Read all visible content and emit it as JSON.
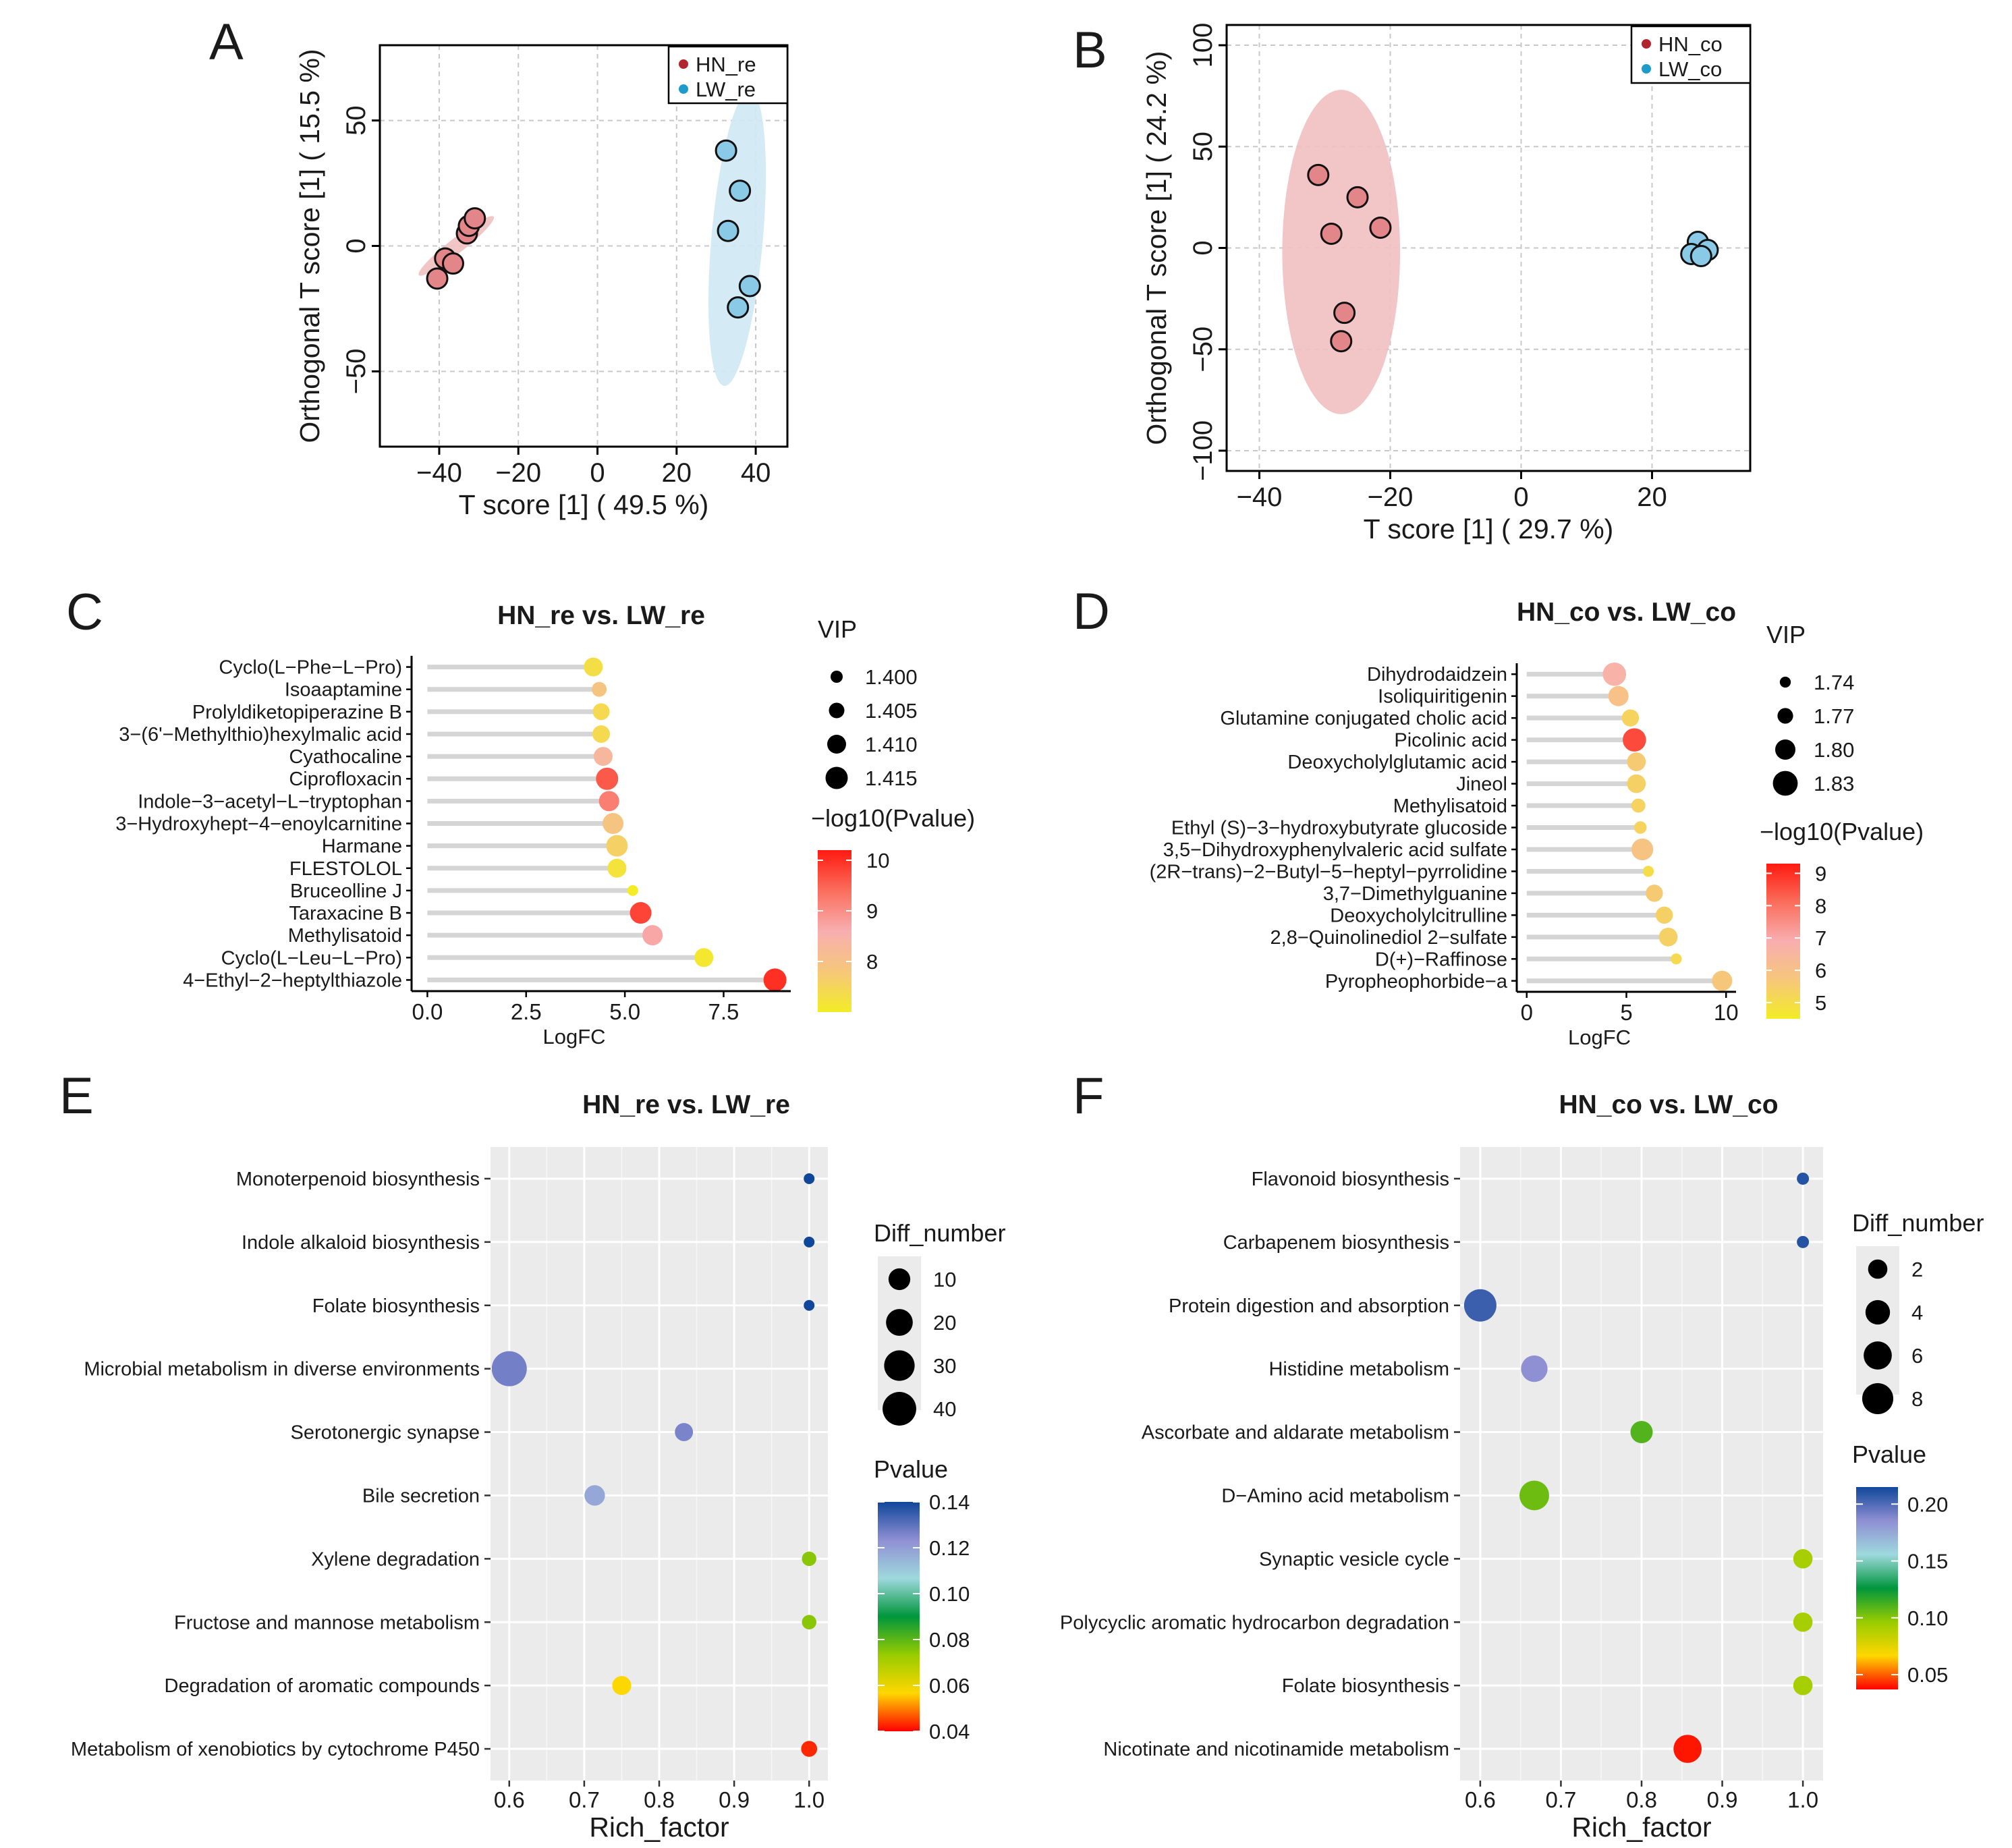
{
  "colors": {
    "hn": "#b1262e",
    "lw": "#1e9bc8",
    "hn_point": "#e38689",
    "lw_point": "#8bcae6",
    "hn_ellipse": "#f1c0c1",
    "lw_ellipse": "#cfe8f3",
    "grey_panel": "#ebebeb"
  },
  "chart_data": [
    {
      "panel": "A",
      "type": "scatter",
      "xlabel": "T score [1] ( 49.5 %)",
      "ylabel": "Orthogonal T score [1] ( 15.5 %)",
      "xlim": [
        -55,
        48
      ],
      "ylim": [
        -80,
        80
      ],
      "xticks": [
        -40,
        -20,
        0,
        20,
        40
      ],
      "xtick_labels": [
        "−40",
        "−20",
        "0",
        "20",
        "40"
      ],
      "yticks": [
        -50,
        0,
        50
      ],
      "ytick_labels": [
        "−50",
        "0",
        "50"
      ],
      "legend": [
        {
          "label": "HN_re",
          "group": "hn"
        },
        {
          "label": "LW_re",
          "group": "lw"
        }
      ],
      "series": [
        {
          "name": "HN_re",
          "group": "hn",
          "points": [
            [
              -40.5,
              -13
            ],
            [
              -38.5,
              -5
            ],
            [
              -36.5,
              -7
            ],
            [
              -33,
              5
            ],
            [
              -32.5,
              8
            ],
            [
              -31,
              11
            ]
          ]
        },
        {
          "name": "LW_re",
          "group": "lw",
          "points": [
            [
              32.5,
              38
            ],
            [
              36,
              22
            ],
            [
              33,
              6
            ],
            [
              38.5,
              -16
            ],
            [
              35.5,
              -24.5
            ]
          ]
        }
      ],
      "ellipses": [
        {
          "group": "hn",
          "cx": -35.7,
          "cy": 0,
          "rx": 12,
          "ry": 3,
          "angle": 38
        },
        {
          "group": "lw",
          "cx": 35.3,
          "cy": 3,
          "rx": 6.5,
          "ry": 59,
          "angle": -5
        }
      ]
    },
    {
      "panel": "B",
      "type": "scatter",
      "xlabel": "T score [1] ( 29.7 %)",
      "ylabel": "Orthogonal T score [1] ( 24.2 %)",
      "xlim": [
        -45,
        35
      ],
      "ylim": [
        -110,
        110
      ],
      "xticks": [
        -40,
        -20,
        0,
        20
      ],
      "xtick_labels": [
        "−40",
        "−20",
        "0",
        "20"
      ],
      "yticks": [
        -100,
        -50,
        0,
        50,
        100
      ],
      "ytick_labels": [
        "−100",
        "−50",
        "0",
        "50",
        "100"
      ],
      "legend": [
        {
          "label": "HN_co",
          "group": "hn"
        },
        {
          "label": "LW_co",
          "group": "lw"
        }
      ],
      "series": [
        {
          "name": "HN_co",
          "group": "hn",
          "points": [
            [
              -31,
              36
            ],
            [
              -29,
              7
            ],
            [
              -25,
              25
            ],
            [
              -21.5,
              10
            ],
            [
              -27,
              -32
            ],
            [
              -27.5,
              -46
            ]
          ]
        },
        {
          "name": "LW_co",
          "group": "lw",
          "points": [
            [
              27,
              3
            ],
            [
              28.5,
              -1
            ],
            [
              26,
              -3
            ],
            [
              27.5,
              -4
            ]
          ]
        }
      ],
      "ellipses": [
        {
          "group": "hn",
          "cx": -27.5,
          "cy": -2,
          "rx": 9,
          "ry": 80,
          "angle": 0
        }
      ]
    },
    {
      "panel": "C",
      "type": "lollipop",
      "title": "HN_re vs. LW_re",
      "xlabel": "LogFC",
      "xlim": [
        -0.4,
        9.2
      ],
      "xticks": [
        0.0,
        2.5,
        5.0,
        7.5
      ],
      "xtick_labels": [
        "0.0",
        "2.5",
        "5.0",
        "7.5"
      ],
      "categories": [
        "Cyclo(L−Phe−L−Pro)",
        "Isoaaptamine",
        "Prolyldiketopiperazine B",
        "3−(6'−Methylthio)hexylmalic acid",
        "Cyathocaline",
        "Ciprofloxacin",
        "Indole−3−acetyl−L−tryptophan",
        "3−Hydroxyhept−4−enoylcarnitine",
        "Harmane",
        "FLESTOLOL",
        "Bruceolline J",
        "Taraxacine B",
        "Methylisatoid",
        "Cyclo(L−Leu−L−Pro)",
        "4−Ethyl−2−heptylthiazole"
      ],
      "values": [
        4.2,
        4.35,
        4.4,
        4.4,
        4.45,
        4.55,
        4.6,
        4.7,
        4.8,
        4.8,
        5.2,
        5.4,
        5.7,
        7.0,
        8.8
      ],
      "vip": [
        1.41,
        1.404,
        1.407,
        1.408,
        1.41,
        1.415,
        1.412,
        1.413,
        1.414,
        1.41,
        1.398,
        1.414,
        1.412,
        1.41,
        1.416
      ],
      "neglog10p": [
        7.3,
        7.9,
        7.4,
        7.4,
        8.3,
        9.6,
        9.2,
        7.9,
        7.6,
        7.2,
        7.0,
        9.8,
        8.7,
        7.1,
        10.0
      ],
      "size_legend": {
        "title": "VIP",
        "labels": [
          "1.400",
          "1.405",
          "1.410",
          "1.415"
        ],
        "values": [
          1.4,
          1.405,
          1.41,
          1.415
        ],
        "range": [
          1.396,
          1.416
        ]
      },
      "color_legend": {
        "title": "−log10(Pvalue)",
        "labels": [
          "10",
          "9",
          "8"
        ],
        "values": [
          10,
          9,
          8
        ],
        "range": [
          7.0,
          10.2
        ],
        "stops": [
          "#f3ec26",
          "#f6c77a",
          "#f8aeb0",
          "#fa6e5c",
          "#ff1a10"
        ]
      }
    },
    {
      "panel": "D",
      "type": "lollipop",
      "title": "HN_co vs. LW_co",
      "xlabel": "LogFC",
      "xlim": [
        -0.5,
        10.5
      ],
      "xticks": [
        0,
        5,
        10
      ],
      "xtick_labels": [
        "0",
        "5",
        "10"
      ],
      "categories": [
        "Dihydrodaidzein",
        "Isoliquiritigenin",
        "Glutamine conjugated cholic acid",
        "Picolinic acid",
        "Deoxycholylglutamic acid",
        "Jineol",
        "Methylisatoid",
        "Ethyl (S)−3−hydroxybutyrate glucoside",
        "3,5−Dihydroxyphenylvaleric acid sulfate",
        "(2R−trans)−2−Butyl−5−heptyl−pyrrolidine",
        "3,7−Dimethylguanine",
        "Deoxycholylcitrulline",
        "2,8−Quinolinediol 2−sulfate",
        "D(+)−Raffinose",
        "Pyropheophorbide−a"
      ],
      "values": [
        4.4,
        4.6,
        5.2,
        5.4,
        5.5,
        5.5,
        5.6,
        5.7,
        5.8,
        6.1,
        6.4,
        6.9,
        7.1,
        7.5,
        9.8
      ],
      "vip": [
        1.82,
        1.8,
        1.78,
        1.82,
        1.79,
        1.79,
        1.76,
        1.75,
        1.81,
        1.74,
        1.78,
        1.78,
        1.79,
        1.74,
        1.8
      ],
      "neglog10p": [
        6.7,
        6.0,
        5.3,
        8.6,
        5.6,
        5.4,
        5.3,
        5.3,
        5.9,
        5.0,
        5.6,
        5.4,
        5.4,
        5.1,
        5.7
      ],
      "size_legend": {
        "title": "VIP",
        "labels": [
          "1.74",
          "1.77",
          "1.80",
          "1.83"
        ],
        "values": [
          1.74,
          1.77,
          1.8,
          1.83
        ],
        "range": [
          1.73,
          1.835
        ]
      },
      "color_legend": {
        "title": "−log10(Pvalue)",
        "labels": [
          "9",
          "8",
          "7",
          "6",
          "5"
        ],
        "values": [
          9,
          8,
          7,
          6,
          5
        ],
        "range": [
          4.5,
          9.3
        ],
        "stops": [
          "#f3ec26",
          "#f6c77a",
          "#f8aeb0",
          "#fa6e5c",
          "#ff1a10"
        ]
      }
    },
    {
      "panel": "E",
      "type": "bubble",
      "title": "HN_re vs. LW_re",
      "xlabel": "Rich_factor",
      "xlim": [
        0.575,
        1.025
      ],
      "xticks": [
        0.6,
        0.7,
        0.8,
        0.9,
        1.0
      ],
      "xtick_labels": [
        "0.6",
        "0.7",
        "0.8",
        "0.9",
        "1.0"
      ],
      "categories": [
        "Monoterpenoid biosynthesis",
        "Indole alkaloid biosynthesis",
        "Folate biosynthesis",
        "Microbial metabolism in diverse environments",
        "Serotonergic synapse",
        "Bile secretion",
        "Xylene degradation",
        "Fructose and mannose metabolism",
        "Degradation of aromatic compounds",
        "Metabolism of xenobiotics by cytochrome P450"
      ],
      "rich_factor": [
        1.0,
        1.0,
        1.0,
        0.6,
        0.833,
        0.714,
        1.0,
        1.0,
        0.75,
        1.0
      ],
      "diff_number": [
        1,
        1,
        1,
        45,
        5,
        8,
        2,
        2,
        6,
        3
      ],
      "pvalue": [
        0.142,
        0.142,
        0.142,
        0.127,
        0.126,
        0.118,
        0.075,
        0.075,
        0.057,
        0.043
      ],
      "size_legend": {
        "title": "Diff_number",
        "labels": [
          "10",
          "20",
          "30",
          "40"
        ],
        "values": [
          10,
          20,
          30,
          40
        ],
        "range": [
          1,
          45
        ]
      },
      "color_legend": {
        "title": "Pvalue",
        "labels": [
          "0.14",
          "0.12",
          "0.10",
          "0.08",
          "0.06",
          "0.04"
        ],
        "values": [
          0.14,
          0.12,
          0.1,
          0.08,
          0.06,
          0.04
        ],
        "range": [
          0.04,
          0.14
        ],
        "stops": [
          "#ff0000",
          "#ffd700",
          "#98cc00",
          "#00963c",
          "#9ed9dd",
          "#8f8fd3",
          "#10479a"
        ]
      }
    },
    {
      "panel": "F",
      "type": "bubble",
      "title": "HN_co vs. LW_co",
      "xlabel": "Rich_factor",
      "xlim": [
        0.575,
        1.025
      ],
      "xticks": [
        0.6,
        0.7,
        0.8,
        0.9,
        1.0
      ],
      "xtick_labels": [
        "0.6",
        "0.7",
        "0.8",
        "0.9",
        "1.0"
      ],
      "categories": [
        "Flavonoid biosynthesis",
        "Carbapenem biosynthesis",
        "Protein digestion and absorption",
        "Histidine metabolism",
        "Ascorbate and aldarate metabolism",
        "D−Amino acid metabolism",
        "Synaptic vesicle cycle",
        "Polycyclic aromatic hydrocarbon degradation",
        "Folate biosynthesis",
        "Nicotinate and nicotinamide metabolism"
      ],
      "rich_factor": [
        1.0,
        1.0,
        0.6,
        0.667,
        0.8,
        0.667,
        1.0,
        1.0,
        1.0,
        0.857
      ],
      "diff_number": [
        1,
        1,
        9,
        5,
        3,
        7,
        2,
        2,
        2,
        6
      ],
      "pvalue": [
        0.21,
        0.21,
        0.205,
        0.185,
        0.11,
        0.105,
        0.092,
        0.092,
        0.092,
        0.04
      ],
      "size_legend": {
        "title": "Diff_number",
        "labels": [
          "2",
          "4",
          "6",
          "8"
        ],
        "values": [
          2,
          4,
          6,
          8
        ],
        "range": [
          1,
          9
        ]
      },
      "color_legend": {
        "title": "Pvalue",
        "labels": [
          "0.20",
          "0.15",
          "0.10",
          "0.05"
        ],
        "values": [
          0.2,
          0.15,
          0.1,
          0.05
        ],
        "range": [
          0.037,
          0.215
        ],
        "stops": [
          "#ff0000",
          "#ffd700",
          "#98cc00",
          "#00963c",
          "#9ed9dd",
          "#8f8fd3",
          "#10479a"
        ]
      }
    }
  ]
}
